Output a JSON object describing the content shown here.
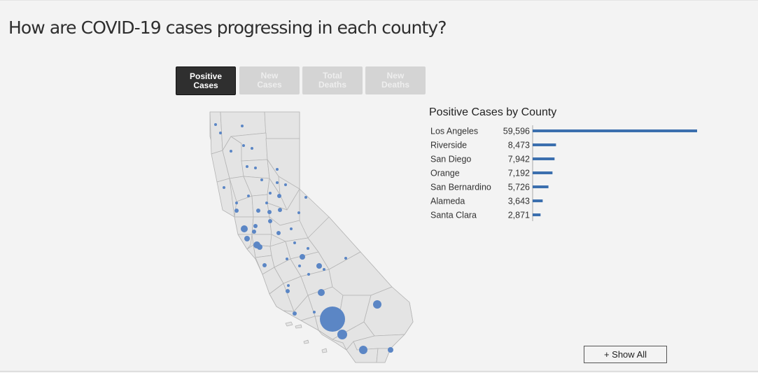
{
  "title": "How are COVID-19 cases progressing in each county?",
  "tabs": [
    {
      "label": "Positive\nCases",
      "active": true
    },
    {
      "label": "New\nCases",
      "active": false
    },
    {
      "label": "Total\nDeaths",
      "active": false
    },
    {
      "label": "New\nDeaths",
      "active": false
    }
  ],
  "show_all_label": "+ Show All",
  "colors": {
    "bar": "#3b6fae",
    "bubble": "#5b86c5",
    "map_fill": "#e4e4e4",
    "map_stroke": "#b5b5b5"
  },
  "chart_data": {
    "type": "bar",
    "title": "Positive Cases by County",
    "categories": [
      "Los Angeles",
      "Riverside",
      "San Diego",
      "Orange",
      "San Bernardino",
      "Alameda",
      "Santa Clara"
    ],
    "values": [
      59596,
      8473,
      7942,
      7192,
      5726,
      3643,
      2871
    ],
    "value_labels": [
      "59,596",
      "8,473",
      "7,942",
      "7,192",
      "5,726",
      "3,643",
      "2,871"
    ],
    "orientation": "horizontal",
    "xlim": [
      0,
      59596
    ]
  }
}
